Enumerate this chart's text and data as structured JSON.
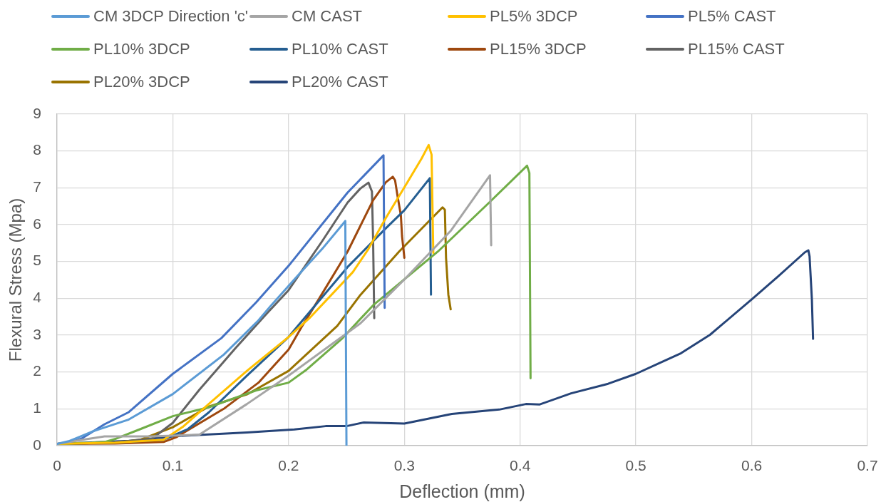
{
  "chart_data": {
    "type": "line",
    "xlabel": "Deflection (mm)",
    "ylabel": "Flexural Stress (Mpa)",
    "xlim": [
      0,
      0.7
    ],
    "xticks": [
      0,
      0.1,
      0.2,
      0.3,
      0.4,
      0.5,
      0.6,
      0.7
    ],
    "ylim": [
      0,
      9
    ],
    "yticks": [
      0,
      1,
      2,
      3,
      4,
      5,
      6,
      7,
      8,
      9
    ],
    "grid": true,
    "legend": "top",
    "marker": "none",
    "line_style": "solid",
    "series": [
      {
        "name": "CM 3DCP Direction 'c'",
        "color": "#5b9bd5",
        "x": [
          0,
          0.01,
          0.021,
          0.031,
          0.062,
          0.1,
          0.144,
          0.174,
          0.185,
          0.207,
          0.229,
          0.247,
          0.249,
          0.25
        ],
        "values": [
          0.05,
          0.12,
          0.26,
          0.39,
          0.71,
          1.4,
          2.47,
          3.4,
          3.81,
          4.58,
          5.34,
          6.02,
          6.1,
          0
        ]
      },
      {
        "name": "CM CAST",
        "color": "#a5a5a5",
        "x": [
          0,
          0.02,
          0.041,
          0.082,
          0.123,
          0.164,
          0.2,
          0.262,
          0.3,
          0.34,
          0.374,
          0.375
        ],
        "values": [
          0.05,
          0.15,
          0.25,
          0.25,
          0.3,
          1.13,
          1.9,
          3.32,
          4.51,
          5.83,
          7.34,
          5.44
        ]
      },
      {
        "name": "PL5% 3DCP",
        "color": "#ffc000",
        "x": [
          0,
          0.05,
          0.092,
          0.109,
          0.131,
          0.164,
          0.2,
          0.218,
          0.2555,
          0.269,
          0.284,
          0.3,
          0.315,
          0.321,
          0.3235,
          0.325
        ],
        "values": [
          0.05,
          0.08,
          0.16,
          0.52,
          1.13,
          2.03,
          2.95,
          3.46,
          4.71,
          5.34,
          6.18,
          7.01,
          7.8,
          8.16,
          7.9,
          5.23
        ]
      },
      {
        "name": "PL5% CAST",
        "color": "#4472c4",
        "x": [
          0,
          0.01,
          0.021,
          0.041,
          0.062,
          0.1,
          0.142,
          0.172,
          0.2,
          0.251,
          0.282,
          0.283
        ],
        "values": [
          0.05,
          0.08,
          0.19,
          0.58,
          0.91,
          1.95,
          2.92,
          3.89,
          4.88,
          6.87,
          7.88,
          3.74
        ]
      },
      {
        "name": "PL10% 3DCP",
        "color": "#70ad47",
        "x": [
          0,
          0.03,
          0.041,
          0.051,
          0.072,
          0.1,
          0.131,
          0.172,
          0.2,
          0.215,
          0.246,
          0.273,
          0.329,
          0.373,
          0.406,
          0.408,
          0.409
        ],
        "values": [
          0.05,
          0.08,
          0.1,
          0.19,
          0.45,
          0.8,
          1.04,
          1.5,
          1.71,
          2.05,
          2.9,
          3.81,
          5.27,
          6.59,
          7.6,
          7.4,
          1.83
        ]
      },
      {
        "name": "PL10% CAST",
        "color": "#255e91",
        "x": [
          0,
          0.05,
          0.092,
          0.113,
          0.131,
          0.164,
          0.2,
          0.251,
          0.284,
          0.3,
          0.322,
          0.323
        ],
        "values": [
          0.05,
          0.08,
          0.16,
          0.45,
          0.9,
          1.9,
          2.95,
          4.85,
          5.9,
          6.39,
          7.26,
          4.1
        ]
      },
      {
        "name": "PL15% 3DCP",
        "color": "#9e480e",
        "x": [
          0,
          0.05,
          0.092,
          0.103,
          0.144,
          0.174,
          0.2,
          0.211,
          0.226,
          0.251,
          0.273,
          0.284,
          0.29,
          0.292,
          0.294,
          0.297,
          0.298,
          0.3
        ],
        "values": [
          0.05,
          0.06,
          0.1,
          0.23,
          1.0,
          1.71,
          2.61,
          3.21,
          3.97,
          5.27,
          6.66,
          7.15,
          7.3,
          7.2,
          6.8,
          6.25,
          5.69,
          5.1
        ]
      },
      {
        "name": "PL15% CAST",
        "color": "#636363",
        "x": [
          0,
          0.05,
          0.082,
          0.1,
          0.123,
          0.154,
          0.181,
          0.2,
          0.229,
          0.251,
          0.262,
          0.269,
          0.272,
          0.273,
          0.274
        ],
        "values": [
          0.05,
          0.08,
          0.19,
          0.62,
          1.52,
          2.64,
          3.58,
          4.22,
          5.55,
          6.6,
          6.98,
          7.14,
          6.9,
          5.6,
          3.46
        ]
      },
      {
        "name": "PL20% 3DCP",
        "color": "#997300",
        "x": [
          0,
          0.05,
          0.072,
          0.1,
          0.131,
          0.164,
          0.2,
          0.242,
          0.262,
          0.2955,
          0.333,
          0.335,
          0.336,
          0.338,
          0.34
        ],
        "values": [
          0.05,
          0.08,
          0.16,
          0.5,
          1.06,
          1.39,
          2.03,
          3.25,
          4.09,
          5.27,
          6.47,
          6.4,
          5.1,
          4.1,
          3.7
        ]
      },
      {
        "name": "PL20% CAST",
        "color": "#264478",
        "x": [
          0,
          0.062,
          0.103,
          0.164,
          0.205,
          0.232,
          0.25,
          0.265,
          0.3,
          0.341,
          0.382,
          0.405,
          0.417,
          0.444,
          0.476,
          0.5,
          0.539,
          0.564,
          0.6,
          0.623,
          0.646,
          0.649,
          0.65,
          0.652,
          0.653
        ],
        "values": [
          0.05,
          0.13,
          0.26,
          0.36,
          0.44,
          0.53,
          0.53,
          0.63,
          0.6,
          0.86,
          0.98,
          1.13,
          1.12,
          1.42,
          1.68,
          1.95,
          2.51,
          3.01,
          3.97,
          4.6,
          5.25,
          5.3,
          5.14,
          3.97,
          2.9
        ]
      }
    ]
  }
}
